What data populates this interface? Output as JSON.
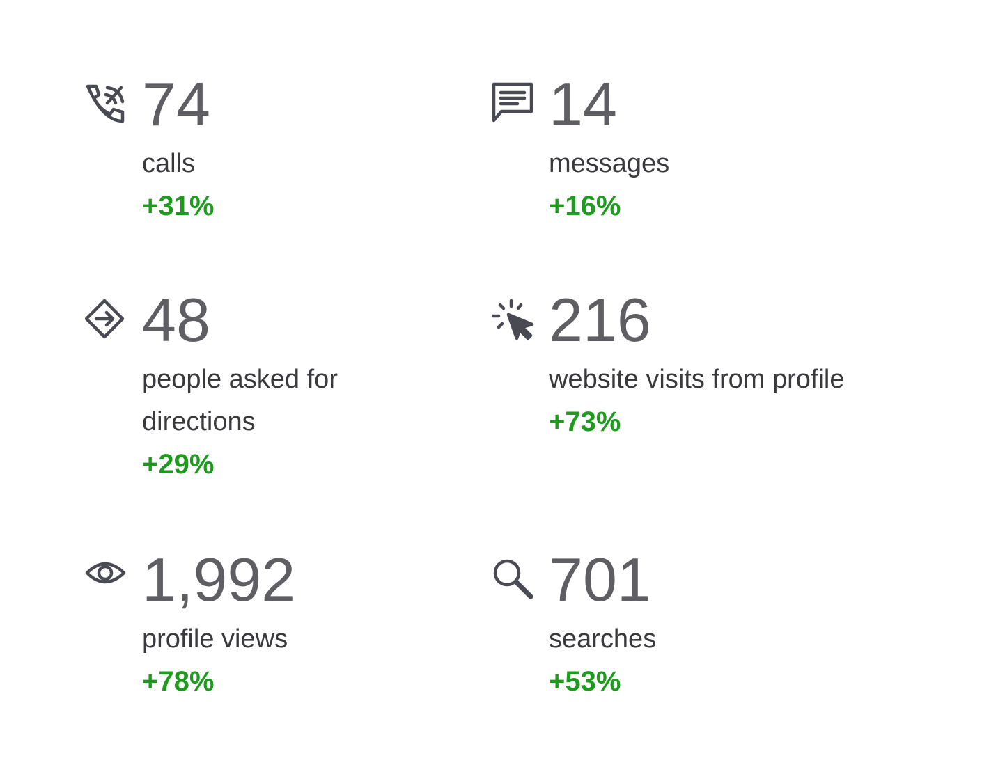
{
  "stats": [
    {
      "value": "74",
      "label": "calls",
      "change": "+31%"
    },
    {
      "value": "14",
      "label": "messages",
      "change": "+16%"
    },
    {
      "value": "48",
      "label": "people asked for directions",
      "change": "+29%"
    },
    {
      "value": "216",
      "label": "website visits from profile",
      "change": "+73%"
    },
    {
      "value": "1,992",
      "label": "profile views",
      "change": "+78%"
    },
    {
      "value": "701",
      "label": "searches",
      "change": "+53%"
    }
  ]
}
